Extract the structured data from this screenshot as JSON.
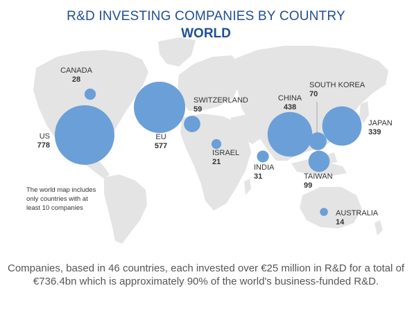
{
  "header": {
    "title": "R&D INVESTING COMPANIES BY COUNTRY",
    "subtitle": "WORLD"
  },
  "note": "The world map includes only countries with at least 10 companies",
  "footer": "Companies, based in 46 countries, each invested over €25 million in R&D for a total of €736.4bn which is approximately 90% of the world's business-funded R&D.",
  "colors": {
    "bubble": "#6b9fd8",
    "map": "#e4e4e4",
    "title": "#1f4e96"
  },
  "chart_data": {
    "type": "bubble-map",
    "title": "R&D INVESTING COMPANIES BY COUNTRY",
    "subtitle": "WORLD",
    "series": [
      {
        "name": "US",
        "value": 778
      },
      {
        "name": "CANADA",
        "value": 28
      },
      {
        "name": "EU",
        "value": 577
      },
      {
        "name": "SWITZERLAND",
        "value": 59
      },
      {
        "name": "ISRAEL",
        "value": 21
      },
      {
        "name": "INDIA",
        "value": 31
      },
      {
        "name": "CHINA",
        "value": 438
      },
      {
        "name": "SOUTH KOREA",
        "value": 70
      },
      {
        "name": "JAPAN",
        "value": 339
      },
      {
        "name": "TAIWAN",
        "value": 99
      },
      {
        "name": "AUSTRALIA",
        "value": 14
      }
    ]
  }
}
